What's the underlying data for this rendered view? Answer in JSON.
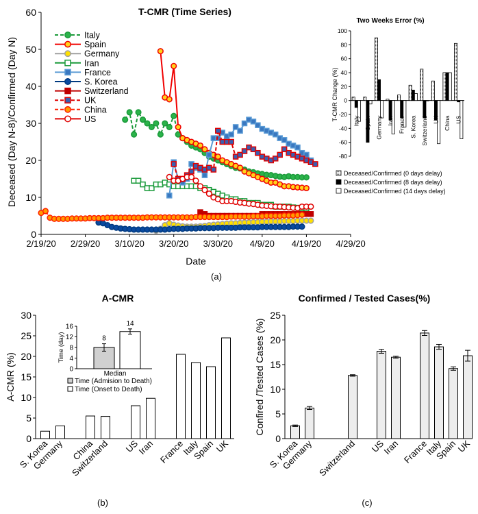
{
  "figure_labels": {
    "a": "(a)",
    "b": "(b)",
    "c": "(c)"
  },
  "chart_data": [
    {
      "id": "tcmr",
      "type": "line",
      "title": "T-CMR (Time Series)",
      "xlabel": "Date",
      "ylabel": "Deceased (Day N-8)/Confirmed (Day N)",
      "xlim": [
        "2020-02-19",
        "2020-04-29"
      ],
      "ylim": [
        0,
        60
      ],
      "yticks": [
        0,
        10,
        20,
        30,
        40,
        50,
        60
      ],
      "xticks": [
        {
          "date": "2020-02-19",
          "label": "2/19/20"
        },
        {
          "date": "2020-02-29",
          "label": "2/29/20"
        },
        {
          "date": "2020-03-10",
          "label": "3/10/20"
        },
        {
          "date": "2020-03-20",
          "label": "3/20/20"
        },
        {
          "date": "2020-03-30",
          "label": "3/30/20"
        },
        {
          "date": "2020-04-09",
          "label": "4/9/20"
        },
        {
          "date": "2020-04-19",
          "label": "4/19/20"
        },
        {
          "date": "2020-04-29",
          "label": "4/29/20"
        }
      ],
      "legend_position": "top-left",
      "series": [
        {
          "name": "Italy",
          "color": "#1a9a3a",
          "fill": "#2bb34a",
          "marker": "circle",
          "dash": true,
          "start": "2020-03-09",
          "values": [
            31,
            33,
            27,
            33,
            31,
            30,
            29,
            30,
            27,
            30,
            29,
            32,
            27,
            26,
            25,
            24,
            23.5,
            23,
            22,
            21,
            20.5,
            20,
            19.5,
            19,
            18.5,
            18,
            17.8,
            17.5,
            17,
            16.8,
            16.5,
            16.3,
            16.1,
            16,
            15.8,
            15.6,
            15.5,
            15.7,
            15.5,
            15.5,
            15.4,
            15.4
          ]
        },
        {
          "name": "Spain",
          "color": "#f00000",
          "fill": "#ffd21a",
          "marker": "circle",
          "dash": false,
          "start": "2020-03-17",
          "values": [
            49.5,
            37,
            36.5,
            45.5,
            29,
            26,
            25.5,
            25,
            24.5,
            24,
            23,
            22,
            21.5,
            21,
            20,
            19.5,
            19,
            18.5,
            18,
            17,
            16.5,
            16,
            15.5,
            15,
            14.5,
            14,
            14,
            13.5,
            13,
            13,
            12.8,
            12.7,
            12.6,
            12.5
          ]
        },
        {
          "name": "Germany",
          "color": "#a0a0a0",
          "fill": "#ffe000",
          "marker": "circle",
          "dash": false,
          "start": "2020-03-16",
          "values": [
            1,
            1.5,
            2.5,
            3,
            2.6,
            2.4,
            2.2,
            2.1,
            2.1,
            2.1,
            2.2,
            2.3,
            2.5,
            2.6,
            2.7,
            2.8,
            2.9,
            3,
            3,
            3.1,
            3.2,
            3.2,
            3.3,
            3.3,
            3.4,
            3.4,
            3.5,
            3.5,
            3.5,
            3.6,
            3.6,
            3.6,
            3.7,
            3.7,
            3.7,
            3.7
          ]
        },
        {
          "name": "Iran",
          "color": "#1a9a3a",
          "fill": "#ffffff",
          "marker": "square",
          "dash": false,
          "start": "2020-03-11",
          "values": [
            14.5,
            14.5,
            13.5,
            12.5,
            12.5,
            13.5,
            13.5,
            14,
            13.5,
            13,
            13,
            13,
            13,
            13,
            13,
            12.5,
            12.5,
            12,
            11.5,
            11,
            10.5,
            10,
            9.5,
            9.5,
            9,
            9,
            8.5,
            8.5,
            8.5,
            8,
            8,
            8,
            7.5,
            7.5,
            7.5,
            7.5,
            7.3,
            7.2,
            7.1,
            7
          ]
        },
        {
          "name": "France",
          "color": "#5a9bd5",
          "fill": "#3a78c0",
          "marker": "square",
          "dash": false,
          "start": "2020-03-19",
          "values": [
            10.5,
            19.5,
            15,
            14,
            15,
            19,
            18,
            17.5,
            16,
            21.5,
            26,
            26,
            27.5,
            26.5,
            27,
            29,
            28,
            30,
            31,
            30.5,
            29.5,
            28.5,
            28,
            27.5,
            27,
            26,
            25.5,
            24.5,
            24,
            23.5,
            22,
            21.5,
            20
          ]
        },
        {
          "name": "S. Korea",
          "color": "#003a80",
          "fill": "#0a4aa0",
          "marker": "circle",
          "dash": false,
          "start": "2020-03-03",
          "values": [
            3.2,
            3,
            2.5,
            2,
            1.8,
            1.6,
            1.5,
            1.4,
            1.3,
            1.3,
            1.3,
            1.3,
            1.3,
            1.3,
            1.3,
            1.3,
            1.4,
            1.5,
            1.5,
            1.5,
            1.6,
            1.6,
            1.6,
            1.7,
            1.7,
            1.7,
            1.7,
            1.8,
            1.8,
            1.8,
            1.8,
            1.8,
            1.9,
            1.9,
            1.9,
            1.9,
            1.9,
            2,
            2,
            2,
            2,
            2,
            2,
            2,
            2.1,
            2.1,
            2.1
          ]
        },
        {
          "name": "Switzerland",
          "color": "#c00000",
          "fill": "#c00000",
          "marker": "square",
          "dash": false,
          "start": "2020-03-26",
          "values": [
            6,
            5.5,
            5,
            5,
            5,
            5,
            5,
            5,
            5,
            5,
            5,
            5,
            5,
            5,
            5.5,
            5.5,
            5.5,
            5.5,
            5.5,
            5.5,
            5.5,
            5.5,
            5.5,
            5.5,
            5.5,
            5.5
          ]
        },
        {
          "name": "UK",
          "color": "#e00000",
          "fill": "#3a5fb0",
          "marker": "square",
          "dash": true,
          "start": "2020-03-20",
          "values": [
            19,
            15,
            15,
            16,
            17,
            18.5,
            18,
            17.5,
            18,
            17.5,
            28,
            25,
            25,
            25,
            21,
            21.5,
            22.5,
            23.5,
            23,
            22,
            21,
            20.5,
            20,
            20.5,
            21.5,
            23,
            22,
            21.5,
            21,
            20.5,
            20,
            19.5,
            19
          ]
        },
        {
          "name": "China",
          "color": "#ff2000",
          "fill": "#ff9a00",
          "marker": "circle",
          "dash": true,
          "start": "2020-02-19",
          "values": [
            5.8,
            6.3,
            4.5,
            4.2,
            4.2,
            4.2,
            4.2,
            4.3,
            4.3,
            4.3,
            4.3,
            4.4,
            4.4,
            4.4,
            4.4,
            4.5,
            4.5,
            4.5,
            4.5,
            4.5,
            4.5,
            4.5,
            4.5,
            4.5,
            4.6,
            4.6,
            4.6,
            4.6,
            4.6,
            4.6,
            4.6,
            4.6,
            4.6,
            4.6,
            4.6,
            4.7,
            4.7,
            4.7,
            4.7,
            4.7,
            4.7,
            4.7,
            4.7,
            4.8,
            4.8,
            4.8,
            4.8,
            4.8,
            4.9,
            4.9,
            4.9,
            5,
            5,
            5,
            5,
            5.1,
            5.1,
            5.1,
            5.2,
            5.3
          ]
        },
        {
          "name": "US",
          "color": "#e00000",
          "fill": "#ffffff",
          "marker": "circle",
          "dash": false,
          "start": "2020-03-19",
          "values": [
            15.5,
            14.5,
            14.5,
            15,
            15.5,
            15.5,
            14.5,
            13,
            12,
            11,
            10,
            9.5,
            9,
            9,
            9,
            8.8,
            8.6,
            8.5,
            8.3,
            8.2,
            8,
            7.8,
            7.7,
            7.6,
            7.5,
            7.5,
            7.4,
            7.3,
            7.2,
            7.1,
            7.5,
            7.5,
            7.5
          ]
        }
      ]
    },
    {
      "id": "two-weeks-error",
      "type": "bar",
      "title": "Two Weeks Error (%)",
      "ylabel": "T-CMR Change (%)",
      "ylim": [
        -80,
        100
      ],
      "yticks": [
        100,
        80,
        60,
        40,
        20,
        0,
        -20,
        -40,
        -60,
        -80
      ],
      "categories": [
        "Italy",
        "Spain",
        "Germany",
        "Iran",
        "France",
        "S. Korea",
        "Switzerland",
        "UK",
        "China",
        "US"
      ],
      "series": [
        {
          "name": "Deceased/Confirmed (0 days delay)",
          "pattern": "dots",
          "values": [
            5,
            5,
            90,
            2,
            8,
            22,
            45,
            28,
            40,
            82
          ]
        },
        {
          "name": "Deceased/Confirmed (8 days delay)",
          "pattern": "solid",
          "values": [
            -10,
            -60,
            30,
            -28,
            -25,
            15,
            -25,
            -28,
            40,
            -2
          ]
        },
        {
          "name": "Deceased/Confirmed (14 days delay)",
          "pattern": "empty",
          "values": [
            -30,
            -5,
            -25,
            -48,
            -38,
            10,
            0,
            -62,
            40,
            -55
          ]
        }
      ],
      "legend_position": "bottom"
    },
    {
      "id": "acmr",
      "type": "bar",
      "title": "A-CMR",
      "ylabel": "A-CMR (%)",
      "ylim": [
        0,
        30
      ],
      "yticks": [
        0,
        5,
        10,
        15,
        20,
        25,
        30
      ],
      "categories": [
        "S. Korea",
        "Germany",
        "China",
        "Switzerland",
        "US",
        "Iran",
        "France",
        "Italy",
        "Spain",
        "UK"
      ],
      "values": [
        1.8,
        3.1,
        5.5,
        5.4,
        8,
        9.8,
        20.5,
        18.5,
        17.5,
        24.5
      ],
      "inset": {
        "title": "Median",
        "ylabel": "Time (day)",
        "ylim": [
          0,
          16
        ],
        "yticks": [
          0,
          4,
          8,
          12,
          16
        ],
        "categories": [
          "Time (Admision to Death)",
          "Time (Onset to Death)"
        ],
        "values": [
          8,
          14
        ],
        "errors": [
          1.4,
          1.0
        ],
        "value_labels": [
          "8",
          "14"
        ],
        "legend": [
          "Time (Admision to Death)",
          "Time (Onset to Death)"
        ]
      }
    },
    {
      "id": "confirmed-tested",
      "type": "bar",
      "title": "Confirmed / Tested Cases(%)",
      "ylabel": "Confired /Tested Cases  (%)",
      "ylim": [
        0,
        25
      ],
      "yticks": [
        0,
        5,
        10,
        15,
        20,
        25
      ],
      "categories": [
        "S. Korea",
        "Germany",
        "Switzerland",
        "US",
        "Iran",
        "France",
        "Italy",
        "Spain",
        "UK"
      ],
      "values": [
        2.6,
        6.2,
        12.8,
        17.7,
        16.5,
        21.4,
        18.6,
        14.2,
        16.8
      ],
      "errors": [
        0.15,
        0.3,
        0.15,
        0.4,
        0.2,
        0.5,
        0.5,
        0.35,
        1.1
      ]
    }
  ]
}
